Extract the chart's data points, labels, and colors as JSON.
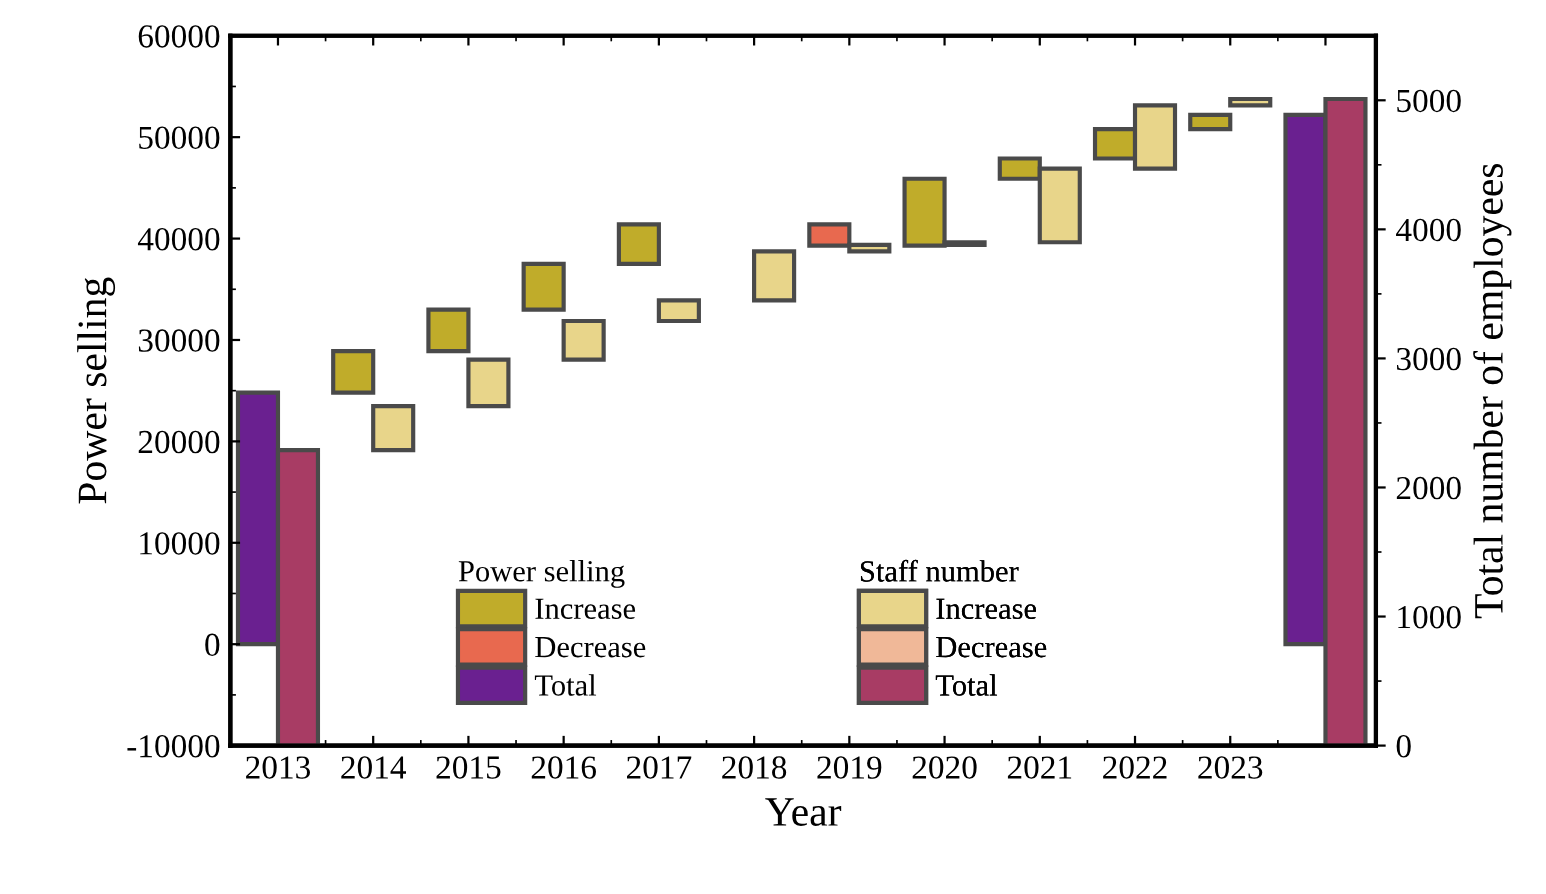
{
  "chart_data": {
    "type": "bar",
    "xlabel": "Year",
    "ylabel": "Power selling",
    "y2label": "Total number of employees",
    "legend_title": [
      "Power selling",
      "Staff number"
    ],
    "categories": [
      "2013",
      "2014",
      "2015",
      "2016",
      "2017",
      "2018",
      "2019",
      "2020",
      "2021",
      "2022",
      "2023",
      null
    ],
    "ylim": [
      -10000,
      60000
    ],
    "yticks": [
      -10000,
      0,
      10000,
      20000,
      30000,
      40000,
      50000,
      60000
    ],
    "y2lim": [
      0,
      5500
    ],
    "y2ticks": [
      0,
      1000,
      2000,
      3000,
      4000,
      5000
    ],
    "legend": "bottom",
    "grid": false,
    "series": [
      {
        "name": "Increase",
        "axis": "y",
        "color": "#c0ac2a",
        "values": [
          null,
          4100,
          4100,
          4500,
          3900,
          null,
          null,
          6600,
          2000,
          2900,
          1400,
          null
        ],
        "base": [
          null,
          24800,
          28900,
          33000,
          37500,
          null,
          null,
          39300,
          45900,
          47900,
          50800,
          null
        ]
      },
      {
        "name": "Decrease",
        "axis": "y",
        "color": "#e8694f",
        "values": [
          null,
          null,
          null,
          null,
          null,
          null,
          -2100,
          null,
          null,
          null,
          null,
          null
        ],
        "base": [
          null,
          null,
          null,
          null,
          null,
          null,
          41400,
          null,
          null,
          null,
          null,
          null
        ]
      },
      {
        "name": "Total",
        "axis": "y",
        "color": "#6a2090",
        "values": [
          24800,
          null,
          null,
          null,
          null,
          null,
          null,
          null,
          null,
          null,
          null,
          52200
        ],
        "base": [
          0,
          null,
          null,
          null,
          null,
          null,
          null,
          null,
          null,
          null,
          null,
          0
        ]
      },
      {
        "name": "Increase",
        "axis": "y2",
        "color": "#e8d58a",
        "values": [
          null,
          340,
          360,
          300,
          160,
          380,
          50,
          20,
          570,
          490,
          50,
          null
        ],
        "base": [
          null,
          2290,
          2630,
          2990,
          3290,
          3450,
          3830,
          3880,
          3900,
          4470,
          4960,
          null
        ]
      },
      {
        "name": "Decrease",
        "axis": "y2",
        "color": "#f0b898",
        "values": [
          null,
          null,
          null,
          null,
          null,
          null,
          null,
          null,
          null,
          null,
          null,
          null
        ],
        "base": [
          null,
          null,
          null,
          null,
          null,
          null,
          null,
          null,
          null,
          null,
          null,
          null
        ]
      },
      {
        "name": "Total",
        "axis": "y2",
        "color": "#a83c64",
        "values": [
          2290,
          null,
          null,
          null,
          null,
          null,
          null,
          null,
          null,
          null,
          null,
          5010
        ],
        "base": [
          0,
          null,
          null,
          null,
          null,
          null,
          null,
          null,
          null,
          null,
          null,
          0
        ]
      }
    ]
  }
}
